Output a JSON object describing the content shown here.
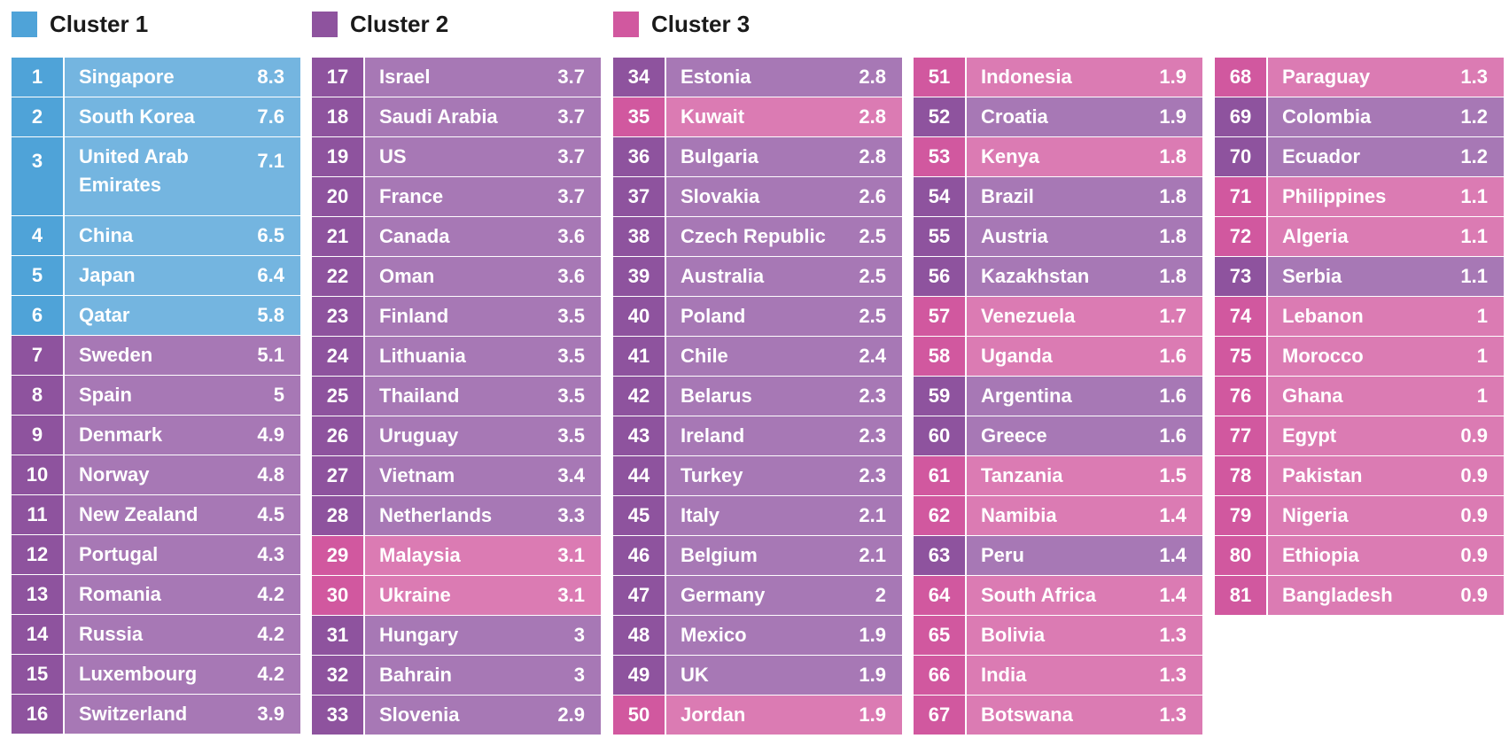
{
  "chart_data": {
    "type": "table",
    "legend": [
      {
        "cluster": 1,
        "label": "Cluster 1",
        "color": "#4fa3d8"
      },
      {
        "cluster": 2,
        "label": "Cluster 2",
        "color": "#8e539e"
      },
      {
        "cluster": 3,
        "label": "Cluster 3",
        "color": "#d1589f"
      }
    ],
    "colors": {
      "1": {
        "num": "#4fa3d8",
        "body": "#74b5e0"
      },
      "2": {
        "num": "#8e539e",
        "body": "#a778b5"
      },
      "3": {
        "num": "#d1589f",
        "body": "#db7bb3"
      }
    },
    "rows": [
      {
        "rank": 1,
        "country": "Singapore",
        "value": "8.3",
        "cluster": 1
      },
      {
        "rank": 2,
        "country": "South Korea",
        "value": "7.6",
        "cluster": 1
      },
      {
        "rank": 3,
        "country": "United Arab Emirates",
        "value": "7.1",
        "cluster": 1
      },
      {
        "rank": 4,
        "country": "China",
        "value": "6.5",
        "cluster": 1
      },
      {
        "rank": 5,
        "country": "Japan",
        "value": "6.4",
        "cluster": 1
      },
      {
        "rank": 6,
        "country": "Qatar",
        "value": "5.8",
        "cluster": 1
      },
      {
        "rank": 7,
        "country": "Sweden",
        "value": "5.1",
        "cluster": 2
      },
      {
        "rank": 8,
        "country": "Spain",
        "value": "5",
        "cluster": 2
      },
      {
        "rank": 9,
        "country": "Denmark",
        "value": "4.9",
        "cluster": 2
      },
      {
        "rank": 10,
        "country": "Norway",
        "value": "4.8",
        "cluster": 2
      },
      {
        "rank": 11,
        "country": "New Zealand",
        "value": "4.5",
        "cluster": 2
      },
      {
        "rank": 12,
        "country": "Portugal",
        "value": "4.3",
        "cluster": 2
      },
      {
        "rank": 13,
        "country": "Romania",
        "value": "4.2",
        "cluster": 2
      },
      {
        "rank": 14,
        "country": "Russia",
        "value": "4.2",
        "cluster": 2
      },
      {
        "rank": 15,
        "country": "Luxembourg",
        "value": "4.2",
        "cluster": 2
      },
      {
        "rank": 16,
        "country": "Switzerland",
        "value": "3.9",
        "cluster": 2
      },
      {
        "rank": 17,
        "country": "Israel",
        "value": "3.7",
        "cluster": 2
      },
      {
        "rank": 18,
        "country": "Saudi Arabia",
        "value": "3.7",
        "cluster": 2
      },
      {
        "rank": 19,
        "country": "US",
        "value": "3.7",
        "cluster": 2
      },
      {
        "rank": 20,
        "country": "France",
        "value": "3.7",
        "cluster": 2
      },
      {
        "rank": 21,
        "country": "Canada",
        "value": "3.6",
        "cluster": 2
      },
      {
        "rank": 22,
        "country": "Oman",
        "value": "3.6",
        "cluster": 2
      },
      {
        "rank": 23,
        "country": "Finland",
        "value": "3.5",
        "cluster": 2
      },
      {
        "rank": 24,
        "country": "Lithuania",
        "value": "3.5",
        "cluster": 2
      },
      {
        "rank": 25,
        "country": "Thailand",
        "value": "3.5",
        "cluster": 2
      },
      {
        "rank": 26,
        "country": "Uruguay",
        "value": "3.5",
        "cluster": 2
      },
      {
        "rank": 27,
        "country": "Vietnam",
        "value": "3.4",
        "cluster": 2
      },
      {
        "rank": 28,
        "country": "Netherlands",
        "value": "3.3",
        "cluster": 2
      },
      {
        "rank": 29,
        "country": "Malaysia",
        "value": "3.1",
        "cluster": 3
      },
      {
        "rank": 30,
        "country": "Ukraine",
        "value": "3.1",
        "cluster": 3
      },
      {
        "rank": 31,
        "country": "Hungary",
        "value": "3",
        "cluster": 2
      },
      {
        "rank": 32,
        "country": "Bahrain",
        "value": "3",
        "cluster": 2
      },
      {
        "rank": 33,
        "country": "Slovenia",
        "value": "2.9",
        "cluster": 2
      },
      {
        "rank": 34,
        "country": "Estonia",
        "value": "2.8",
        "cluster": 2
      },
      {
        "rank": 35,
        "country": "Kuwait",
        "value": "2.8",
        "cluster": 3
      },
      {
        "rank": 36,
        "country": "Bulgaria",
        "value": "2.8",
        "cluster": 2
      },
      {
        "rank": 37,
        "country": "Slovakia",
        "value": "2.6",
        "cluster": 2
      },
      {
        "rank": 38,
        "country": "Czech Republic",
        "value": "2.5",
        "cluster": 2
      },
      {
        "rank": 39,
        "country": "Australia",
        "value": "2.5",
        "cluster": 2
      },
      {
        "rank": 40,
        "country": "Poland",
        "value": "2.5",
        "cluster": 2
      },
      {
        "rank": 41,
        "country": "Chile",
        "value": "2.4",
        "cluster": 2
      },
      {
        "rank": 42,
        "country": "Belarus",
        "value": "2.3",
        "cluster": 2
      },
      {
        "rank": 43,
        "country": "Ireland",
        "value": "2.3",
        "cluster": 2
      },
      {
        "rank": 44,
        "country": "Turkey",
        "value": "2.3",
        "cluster": 2
      },
      {
        "rank": 45,
        "country": "Italy",
        "value": "2.1",
        "cluster": 2
      },
      {
        "rank": 46,
        "country": "Belgium",
        "value": "2.1",
        "cluster": 2
      },
      {
        "rank": 47,
        "country": "Germany",
        "value": "2",
        "cluster": 2
      },
      {
        "rank": 48,
        "country": "Mexico",
        "value": "1.9",
        "cluster": 2
      },
      {
        "rank": 49,
        "country": "UK",
        "value": "1.9",
        "cluster": 2
      },
      {
        "rank": 50,
        "country": "Jordan",
        "value": "1.9",
        "cluster": 3
      },
      {
        "rank": 51,
        "country": "Indonesia",
        "value": "1.9",
        "cluster": 3
      },
      {
        "rank": 52,
        "country": "Croatia",
        "value": "1.9",
        "cluster": 2
      },
      {
        "rank": 53,
        "country": "Kenya",
        "value": "1.8",
        "cluster": 3
      },
      {
        "rank": 54,
        "country": "Brazil",
        "value": "1.8",
        "cluster": 2
      },
      {
        "rank": 55,
        "country": "Austria",
        "value": "1.8",
        "cluster": 2
      },
      {
        "rank": 56,
        "country": "Kazakhstan",
        "value": "1.8",
        "cluster": 2
      },
      {
        "rank": 57,
        "country": "Venezuela",
        "value": "1.7",
        "cluster": 3
      },
      {
        "rank": 58,
        "country": "Uganda",
        "value": "1.6",
        "cluster": 3
      },
      {
        "rank": 59,
        "country": "Argentina",
        "value": "1.6",
        "cluster": 2
      },
      {
        "rank": 60,
        "country": "Greece",
        "value": "1.6",
        "cluster": 2
      },
      {
        "rank": 61,
        "country": "Tanzania",
        "value": "1.5",
        "cluster": 3
      },
      {
        "rank": 62,
        "country": "Namibia",
        "value": "1.4",
        "cluster": 3
      },
      {
        "rank": 63,
        "country": "Peru",
        "value": "1.4",
        "cluster": 2
      },
      {
        "rank": 64,
        "country": "South Africa",
        "value": "1.4",
        "cluster": 3
      },
      {
        "rank": 65,
        "country": "Bolivia",
        "value": "1.3",
        "cluster": 3
      },
      {
        "rank": 66,
        "country": "India",
        "value": "1.3",
        "cluster": 3
      },
      {
        "rank": 67,
        "country": "Botswana",
        "value": "1.3",
        "cluster": 3
      },
      {
        "rank": 68,
        "country": "Paraguay",
        "value": "1.3",
        "cluster": 3
      },
      {
        "rank": 69,
        "country": "Colombia",
        "value": "1.2",
        "cluster": 2
      },
      {
        "rank": 70,
        "country": "Ecuador",
        "value": "1.2",
        "cluster": 2
      },
      {
        "rank": 71,
        "country": "Philippines",
        "value": "1.1",
        "cluster": 3
      },
      {
        "rank": 72,
        "country": "Algeria",
        "value": "1.1",
        "cluster": 3
      },
      {
        "rank": 73,
        "country": "Serbia",
        "value": "1.1",
        "cluster": 2
      },
      {
        "rank": 74,
        "country": "Lebanon",
        "value": "1",
        "cluster": 3
      },
      {
        "rank": 75,
        "country": "Morocco",
        "value": "1",
        "cluster": 3
      },
      {
        "rank": 76,
        "country": "Ghana",
        "value": "1",
        "cluster": 3
      },
      {
        "rank": 77,
        "country": "Egypt",
        "value": "0.9",
        "cluster": 3
      },
      {
        "rank": 78,
        "country": "Pakistan",
        "value": "0.9",
        "cluster": 3
      },
      {
        "rank": 79,
        "country": "Nigeria",
        "value": "0.9",
        "cluster": 3
      },
      {
        "rank": 80,
        "country": "Ethiopia",
        "value": "0.9",
        "cluster": 3
      },
      {
        "rank": 81,
        "country": "Bangladesh",
        "value": "0.9",
        "cluster": 3
      }
    ]
  }
}
